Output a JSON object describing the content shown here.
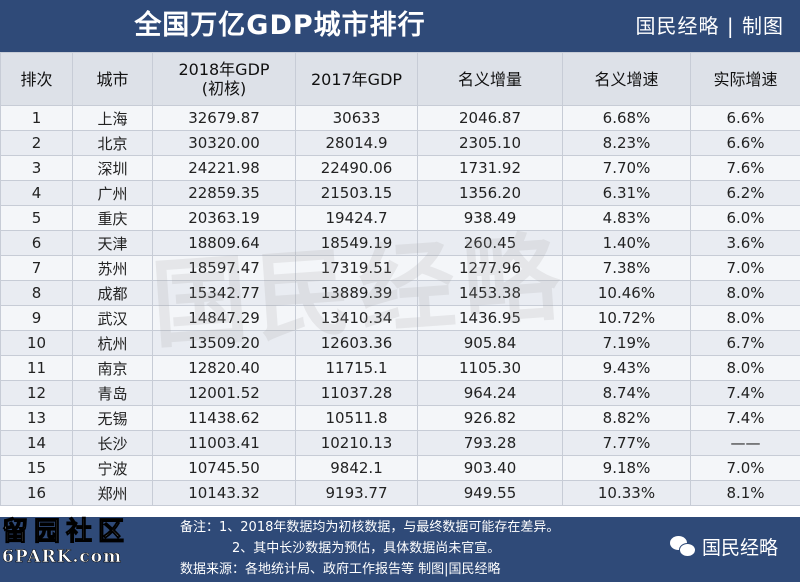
{
  "header": {
    "title": "全国万亿GDP城市排行",
    "brand": "国民经略 | 制图"
  },
  "table": {
    "columns": [
      "排次",
      "城市",
      "2018年GDP\n(初核)",
      "2017年GDP",
      "名义增量",
      "名义增速",
      "实际增速"
    ],
    "rows": [
      [
        "1",
        "上海",
        "32679.87",
        "30633",
        "2046.87",
        "6.68%",
        "6.6%"
      ],
      [
        "2",
        "北京",
        "30320.00",
        "28014.9",
        "2305.10",
        "8.23%",
        "6.6%"
      ],
      [
        "3",
        "深圳",
        "24221.98",
        "22490.06",
        "1731.92",
        "7.70%",
        "7.6%"
      ],
      [
        "4",
        "广州",
        "22859.35",
        "21503.15",
        "1356.20",
        "6.31%",
        "6.2%"
      ],
      [
        "5",
        "重庆",
        "20363.19",
        "19424.7",
        "938.49",
        "4.83%",
        "6.0%"
      ],
      [
        "6",
        "天津",
        "18809.64",
        "18549.19",
        "260.45",
        "1.40%",
        "3.6%"
      ],
      [
        "7",
        "苏州",
        "18597.47",
        "17319.51",
        "1277.96",
        "7.38%",
        "7.0%"
      ],
      [
        "8",
        "成都",
        "15342.77",
        "13889.39",
        "1453.38",
        "10.46%",
        "8.0%"
      ],
      [
        "9",
        "武汉",
        "14847.29",
        "13410.34",
        "1436.95",
        "10.72%",
        "8.0%"
      ],
      [
        "10",
        "杭州",
        "13509.20",
        "12603.36",
        "905.84",
        "7.19%",
        "6.7%"
      ],
      [
        "11",
        "南京",
        "12820.40",
        "11715.1",
        "1105.30",
        "9.43%",
        "8.0%"
      ],
      [
        "12",
        "青岛",
        "12001.52",
        "11037.28",
        "964.24",
        "8.74%",
        "7.4%"
      ],
      [
        "13",
        "无锡",
        "11438.62",
        "10511.8",
        "926.82",
        "8.82%",
        "7.4%"
      ],
      [
        "14",
        "长沙",
        "11003.41",
        "10210.13",
        "793.28",
        "7.77%",
        "——"
      ],
      [
        "15",
        "宁波",
        "10745.50",
        "9842.1",
        "903.40",
        "9.18%",
        "7.0%"
      ],
      [
        "16",
        "郑州",
        "10143.32",
        "9193.77",
        "949.55",
        "10.33%",
        "8.1%"
      ]
    ]
  },
  "watermark": "国民经略",
  "footer": {
    "note1": "备注：1、2018年数据均为初核数据，与最终数据可能存在差异。",
    "note2": "2、其中长沙数据为预估，具体数据尚未官宣。",
    "source": "数据来源：各地统计局、政府工作报告等  制图|国民经略",
    "wechat_label": "国民经略",
    "site_cn": "留园社区",
    "site_en": "6PARK.com"
  }
}
